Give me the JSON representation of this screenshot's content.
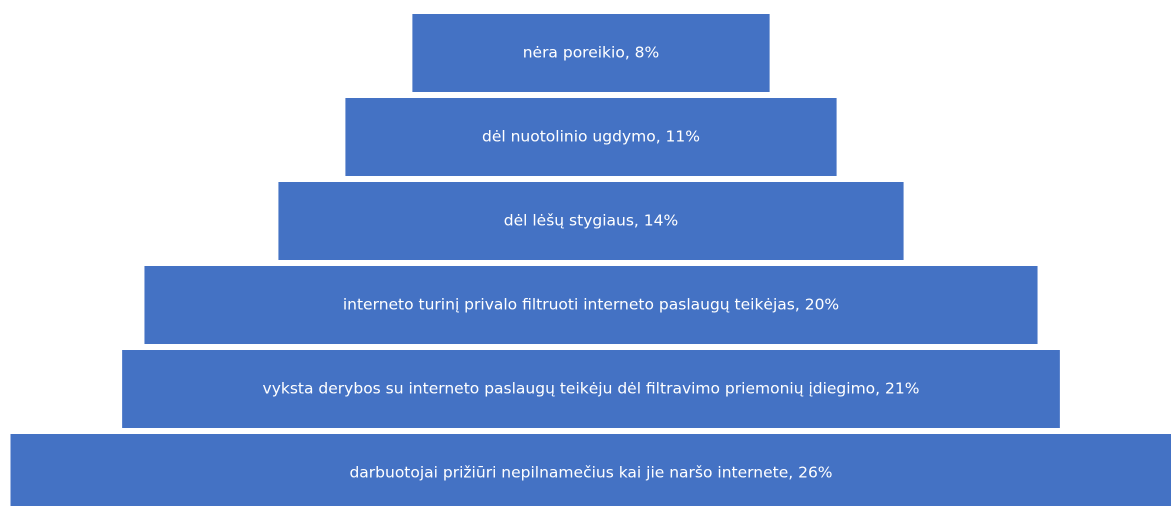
{
  "chart_data": {
    "type": "funnel",
    "categories": [
      "nėra poreikio, 8%",
      "dėl nuotolinio ugdymo, 11%",
      "dėl lėšų stygiaus, 14%",
      "interneto turinį privalo filtruoti interneto paslaugų teikėjas, 20%",
      "vyksta derybos su interneto paslaugų teikėju dėl filtravimo priemonių įdiegimo, 21%",
      "darbuotojai prižiūri nepilnamečius kai jie naršo internete, 26%"
    ],
    "values": [
      8,
      11,
      14,
      20,
      21,
      26
    ],
    "color": "#4472c4"
  }
}
